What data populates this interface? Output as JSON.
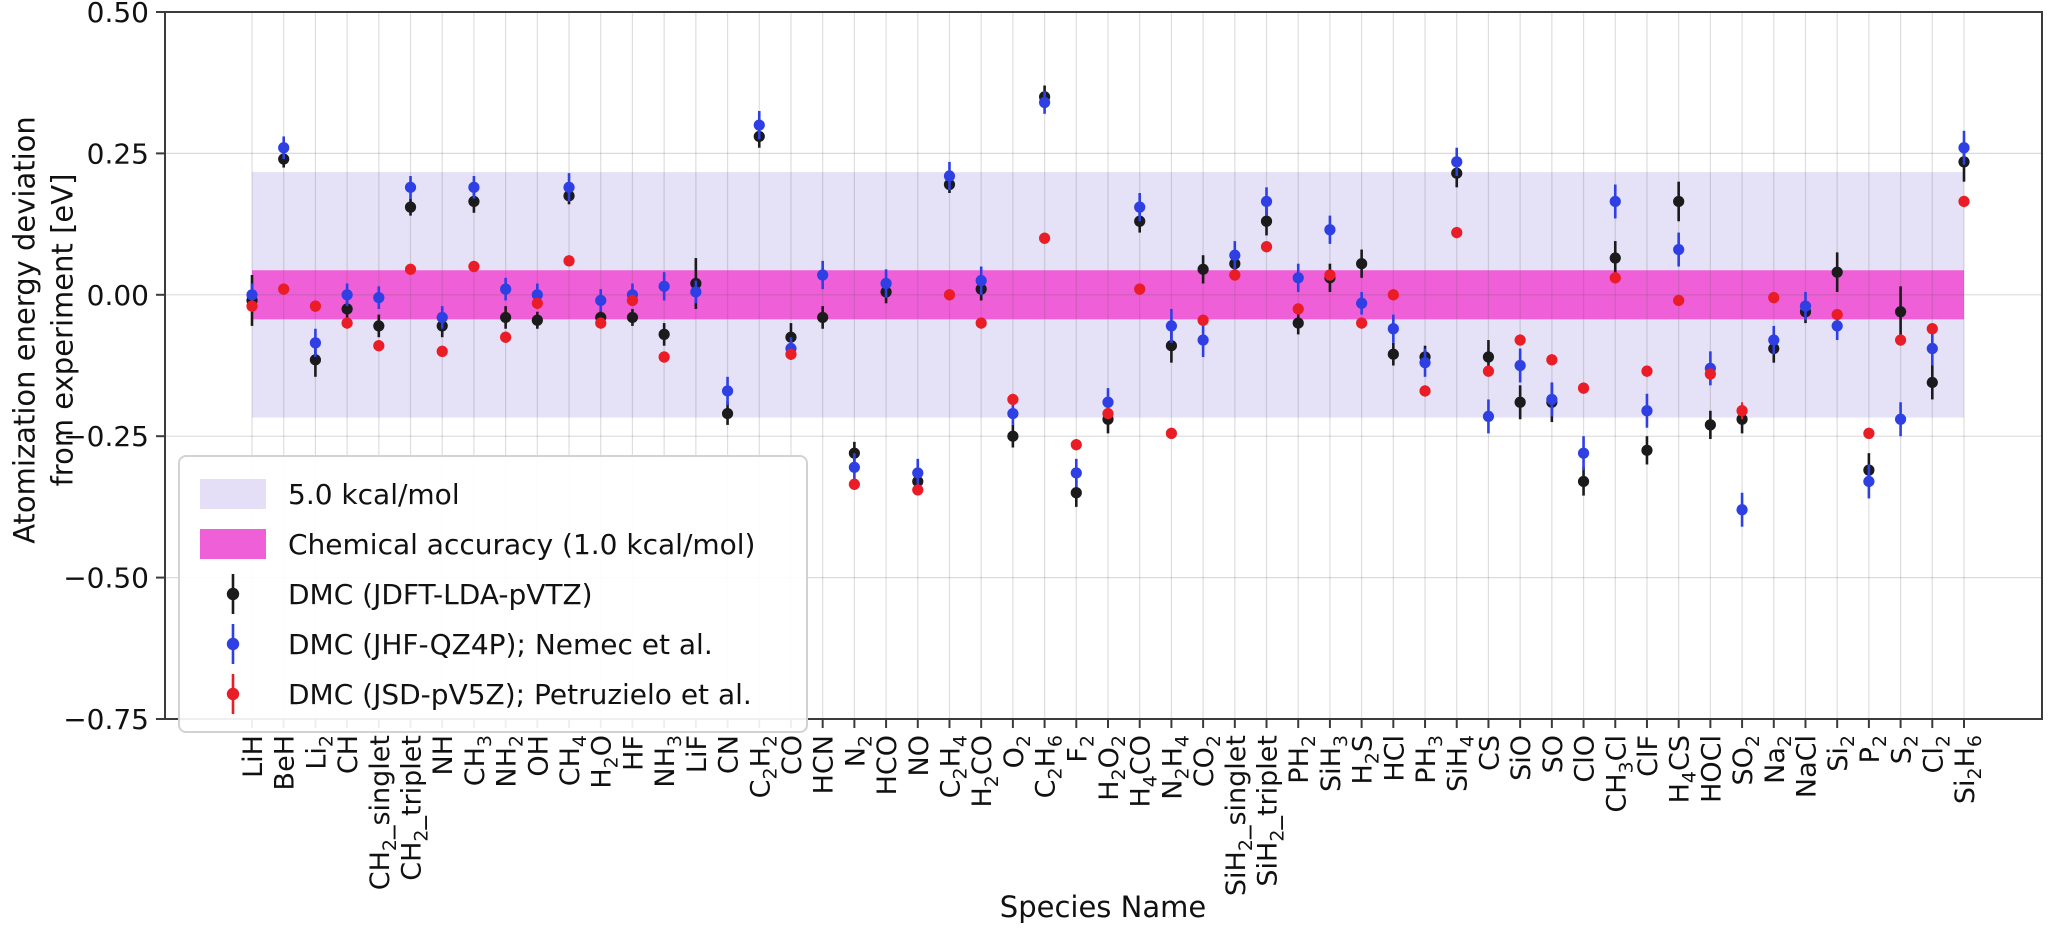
{
  "chart_data": {
    "type": "scatter",
    "title": "",
    "xlabel": "Species Name",
    "ylabel_lines": [
      "Atomization energy deviation",
      "from experiment [eV]"
    ],
    "ylim": [
      -0.75,
      0.5
    ],
    "yticks": [
      0.5,
      0.25,
      0.0,
      -0.25,
      -0.5,
      -0.75
    ],
    "ytick_labels": [
      "0.50",
      "0.25",
      "0.00",
      "−0.25",
      "−0.50",
      "−0.75"
    ],
    "grid": true,
    "legend_position": "lower-left",
    "units": "eV",
    "bands": [
      {
        "label": "5.0 kcal/mol",
        "half_width_eV": 0.217,
        "color": "#e4dff7"
      },
      {
        "label": "Chemical accuracy (1.0 kcal/mol)",
        "half_width_eV": 0.0434,
        "color": "#ef5fd7"
      }
    ],
    "categories": [
      "LiH",
      "BeH",
      "Li2",
      "CH",
      "CH2_singlet",
      "CH2_triplet",
      "NH",
      "CH3",
      "NH2",
      "OH",
      "CH4",
      "H2O",
      "HF",
      "NH3",
      "LiF",
      "CN",
      "C2H2",
      "CO",
      "HCN",
      "N2",
      "HCO",
      "NO",
      "C2H4",
      "H2CO",
      "O2",
      "C2H6",
      "F2",
      "H2O2",
      "H4CO",
      "N2H4",
      "CO2",
      "SiH2_singlet",
      "SiH2_triplet",
      "PH2",
      "SiH3",
      "H2S",
      "HCl",
      "PH3",
      "SiH4",
      "CS",
      "SiO",
      "SO",
      "ClO",
      "CH3Cl",
      "ClF",
      "H4CS",
      "HOCl",
      "SO2",
      "Na2",
      "NaCl",
      "Si2",
      "P2",
      "S2",
      "Cl2",
      "Si2H6"
    ],
    "series": [
      {
        "name": "DMC (JDFT-LDA-pVTZ)",
        "color": "#1b1b1b",
        "values": [
          -0.01,
          0.24,
          -0.115,
          -0.025,
          -0.055,
          0.155,
          -0.055,
          0.165,
          -0.04,
          -0.045,
          0.175,
          -0.04,
          -0.04,
          -0.07,
          0.02,
          -0.21,
          0.28,
          -0.075,
          -0.04,
          -0.28,
          0.005,
          -0.33,
          0.195,
          0.01,
          -0.25,
          0.35,
          -0.35,
          -0.22,
          0.13,
          -0.09,
          0.045,
          0.055,
          0.13,
          -0.05,
          0.03,
          0.055,
          -0.105,
          -0.11,
          0.215,
          -0.11,
          -0.19,
          -0.19,
          -0.33,
          0.065,
          -0.275,
          0.165,
          -0.23,
          -0.22,
          -0.095,
          -0.03,
          0.04,
          -0.31,
          -0.03,
          -0.155,
          0.235
        ],
        "errors": [
          0.045,
          0.015,
          0.03,
          0.025,
          0.02,
          0.015,
          0.02,
          0.02,
          0.02,
          0.015,
          0.015,
          0.015,
          0.015,
          0.02,
          0.045,
          0.02,
          0.02,
          0.025,
          0.02,
          0.02,
          0.02,
          0.02,
          0.015,
          0.02,
          0.02,
          0.02,
          0.025,
          0.025,
          0.02,
          0.03,
          0.025,
          0.02,
          0.025,
          0.02,
          0.025,
          0.025,
          0.02,
          0.02,
          0.025,
          0.03,
          0.03,
          0.035,
          0.025,
          0.03,
          0.025,
          0.035,
          0.025,
          0.025,
          0.025,
          0.02,
          0.035,
          0.03,
          0.045,
          0.03,
          0.035
        ]
      },
      {
        "name": "DMC (JHF-QZ4P); Nemec et al.",
        "color": "#2e3fe3",
        "values": [
          0.0,
          0.26,
          -0.085,
          0.0,
          -0.005,
          0.19,
          -0.04,
          0.19,
          0.01,
          0.0,
          0.19,
          -0.01,
          0.0,
          0.015,
          0.005,
          -0.17,
          0.3,
          -0.095,
          0.035,
          -0.305,
          0.02,
          -0.315,
          0.21,
          0.025,
          -0.21,
          0.34,
          -0.315,
          -0.19,
          0.155,
          -0.055,
          -0.08,
          0.07,
          0.165,
          0.03,
          0.115,
          -0.015,
          -0.06,
          -0.12,
          0.235,
          -0.215,
          -0.125,
          -0.185,
          -0.28,
          0.165,
          -0.205,
          0.08,
          -0.13,
          -0.38,
          -0.08,
          -0.02,
          -0.055,
          -0.33,
          -0.22,
          -0.095,
          0.26
        ],
        "errors": [
          0.02,
          0.02,
          0.025,
          0.02,
          0.02,
          0.02,
          0.02,
          0.02,
          0.02,
          0.02,
          0.025,
          0.02,
          0.02,
          0.025,
          0.02,
          0.025,
          0.025,
          0.02,
          0.025,
          0.025,
          0.025,
          0.025,
          0.025,
          0.025,
          0.02,
          0.02,
          0.025,
          0.025,
          0.025,
          0.03,
          0.03,
          0.025,
          0.025,
          0.025,
          0.025,
          0.02,
          0.025,
          0.025,
          0.025,
          0.03,
          0.03,
          0.03,
          0.03,
          0.03,
          0.03,
          0.03,
          0.03,
          0.03,
          0.025,
          0.025,
          0.025,
          0.03,
          0.03,
          0.03,
          0.03
        ]
      },
      {
        "name": "DMC (JSD-pV5Z); Petruzielo et al.",
        "color": "#ea1c25",
        "values": [
          -0.02,
          0.01,
          -0.02,
          -0.05,
          -0.09,
          0.045,
          -0.1,
          0.05,
          -0.075,
          -0.015,
          0.06,
          -0.05,
          -0.01,
          -0.11,
          null,
          null,
          null,
          -0.105,
          null,
          -0.335,
          null,
          -0.345,
          0.0,
          -0.05,
          -0.185,
          0.1,
          -0.265,
          -0.21,
          0.01,
          -0.245,
          -0.045,
          0.035,
          0.085,
          -0.025,
          0.035,
          -0.05,
          0.0,
          -0.17,
          0.11,
          -0.135,
          -0.08,
          -0.115,
          -0.165,
          0.03,
          -0.135,
          -0.01,
          -0.14,
          -0.205,
          -0.005,
          null,
          -0.035,
          -0.245,
          -0.08,
          -0.06,
          0.165
        ],
        "errors": [
          0.01,
          0.01,
          0.01,
          0.01,
          0.01,
          0.01,
          0.01,
          0.01,
          0.01,
          0.01,
          0.01,
          0.01,
          0.01,
          0.01,
          null,
          null,
          null,
          0.01,
          null,
          0.01,
          null,
          0.01,
          0.01,
          0.01,
          0.01,
          0.01,
          0.01,
          0.01,
          0.01,
          0.01,
          0.01,
          0.01,
          0.01,
          0.01,
          0.01,
          0.01,
          0.01,
          0.01,
          0.01,
          0.01,
          0.01,
          0.01,
          0.01,
          0.01,
          0.01,
          0.01,
          0.01,
          0.015,
          0.01,
          null,
          0.01,
          0.01,
          0.01,
          0.01,
          0.01
        ]
      }
    ]
  }
}
